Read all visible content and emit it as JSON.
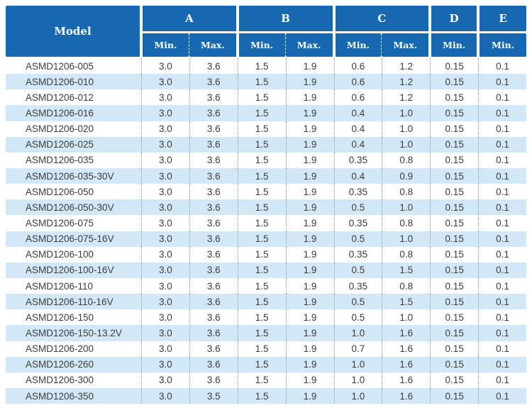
{
  "header": {
    "model_label": "Model",
    "groups": [
      {
        "label": "A",
        "sub": [
          "Min.",
          "Max."
        ]
      },
      {
        "label": "B",
        "sub": [
          "Min.",
          "Max."
        ]
      },
      {
        "label": "C",
        "sub": [
          "Min.",
          "Max."
        ]
      },
      {
        "label": "D",
        "sub": [
          "Min."
        ]
      },
      {
        "label": "E",
        "sub": [
          "Min."
        ]
      }
    ]
  },
  "colors": {
    "header_bg": "#1668b0",
    "header_text": "#ffffff",
    "alt_row_bg": "#d2e8f7",
    "dotted_line": "#6ca9da",
    "body_text": "#3c3c3c"
  },
  "chart_data": {
    "type": "table",
    "title": "",
    "columns": [
      "Model",
      "A Min.",
      "A Max.",
      "B Min.",
      "B Max.",
      "C Min.",
      "C Max.",
      "D Min.",
      "E Min."
    ],
    "rows": [
      [
        "ASMD1206-005",
        "3.0",
        "3.6",
        "1.5",
        "1.9",
        "0.6",
        "1.2",
        "0.15",
        "0.1"
      ],
      [
        "ASMD1206-010",
        "3.0",
        "3.6",
        "1.5",
        "1.9",
        "0.6",
        "1.2",
        "0.15",
        "0.1"
      ],
      [
        "ASMD1206-012",
        "3.0",
        "3.6",
        "1.5",
        "1.9",
        "0.6",
        "1.2",
        "0.15",
        "0.1"
      ],
      [
        "ASMD1206-016",
        "3.0",
        "3.6",
        "1.5",
        "1.9",
        "0.4",
        "1.0",
        "0.15",
        "0.1"
      ],
      [
        "ASMD1206-020",
        "3.0",
        "3.6",
        "1.5",
        "1.9",
        "0.4",
        "1.0",
        "0.15",
        "0.1"
      ],
      [
        "ASMD1206-025",
        "3.0",
        "3.6",
        "1.5",
        "1.9",
        "0.4",
        "1.0",
        "0.15",
        "0.1"
      ],
      [
        "ASMD1206-035",
        "3.0",
        "3.6",
        "1.5",
        "1.9",
        "0.35",
        "0.8",
        "0.15",
        "0.1"
      ],
      [
        "ASMD1206-035-30V",
        "3.0",
        "3.6",
        "1.5",
        "1.9",
        "0.4",
        "0.9",
        "0.15",
        "0.1"
      ],
      [
        "ASMD1206-050",
        "3.0",
        "3.6",
        "1.5",
        "1.9",
        "0.35",
        "0.8",
        "0.15",
        "0.1"
      ],
      [
        "ASMD1206-050-30V",
        "3.0",
        "3.6",
        "1.5",
        "1.9",
        "0.5",
        "1.0",
        "0.15",
        "0.1"
      ],
      [
        "ASMD1206-075",
        "3.0",
        "3.6",
        "1.5",
        "1.9",
        "0.35",
        "0.8",
        "0.15",
        "0.1"
      ],
      [
        "ASMD1206-075-16V",
        "3.0",
        "3.6",
        "1.5",
        "1.9",
        "0.5",
        "1.0",
        "0.15",
        "0.1"
      ],
      [
        "ASMD1206-100",
        "3.0",
        "3.6",
        "1.5",
        "1.9",
        "0.35",
        "0.8",
        "0.15",
        "0.1"
      ],
      [
        "ASMD1206-100-16V",
        "3.0",
        "3.6",
        "1.5",
        "1.9",
        "0.5",
        "1.5",
        "0.15",
        "0.1"
      ],
      [
        "ASMD1206-110",
        "3.0",
        "3.6",
        "1.5",
        "1.9",
        "0.35",
        "0.8",
        "0.15",
        "0.1"
      ],
      [
        "ASMD1206-110-16V",
        "3.0",
        "3.6",
        "1.5",
        "1.9",
        "0.5",
        "1.5",
        "0.15",
        "0.1"
      ],
      [
        "ASMD1206-150",
        "3.0",
        "3.6",
        "1.5",
        "1.9",
        "0.5",
        "1.0",
        "0.15",
        "0.1"
      ],
      [
        "ASMD1206-150-13.2V",
        "3.0",
        "3.6",
        "1.5",
        "1.9",
        "1.0",
        "1.6",
        "0.15",
        "0.1"
      ],
      [
        "ASMD1206-200",
        "3.0",
        "3.6",
        "1.5",
        "1.9",
        "0.7",
        "1.6",
        "0.15",
        "0.1"
      ],
      [
        "ASMD1206-260",
        "3.0",
        "3.6",
        "1.5",
        "1.9",
        "1.0",
        "1.6",
        "0.15",
        "0.1"
      ],
      [
        "ASMD1206-300",
        "3.0",
        "3.6",
        "1.5",
        "1.9",
        "1.0",
        "1.6",
        "0.15",
        "0.1"
      ],
      [
        "ASMD1206-350",
        "3.0",
        "3.5",
        "1.5",
        "1.9",
        "1.0",
        "1.6",
        "0.15",
        "0.1"
      ]
    ]
  }
}
